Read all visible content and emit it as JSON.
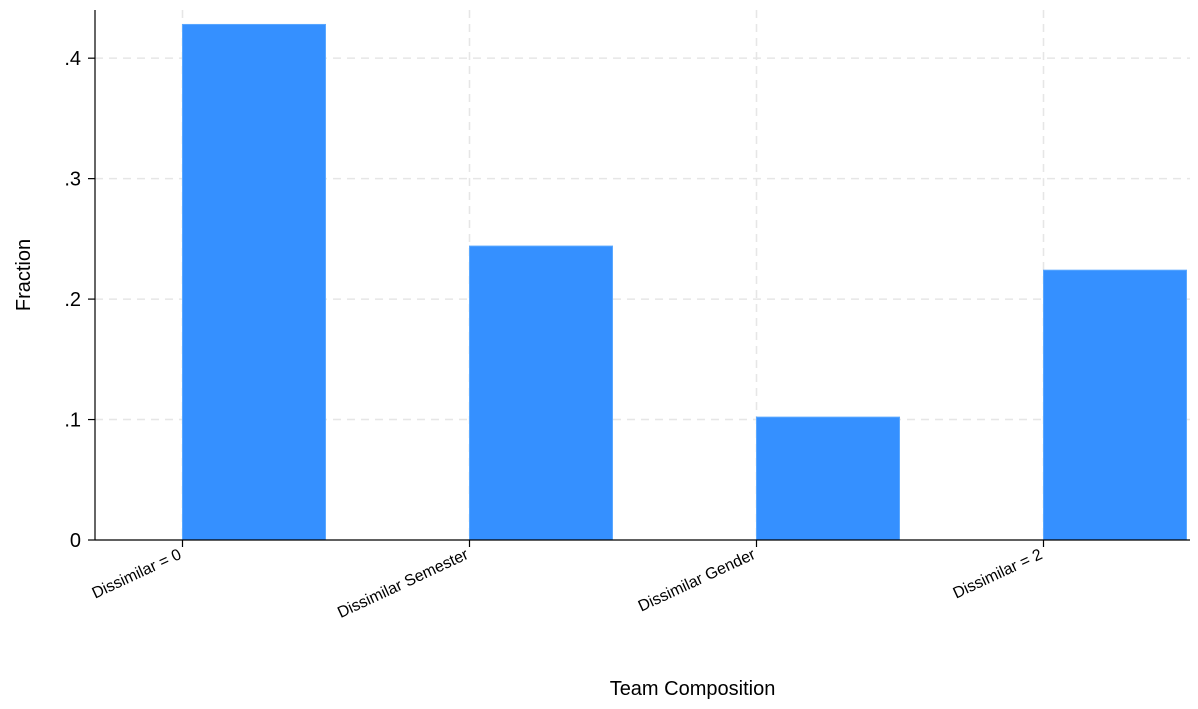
{
  "chart_data": {
    "type": "bar",
    "title": "",
    "xlabel": "Team Composition",
    "ylabel": "Fraction",
    "categories": [
      "Dissimilar = 0",
      "Dissimilar Semester",
      "Dissimilar Gender",
      "Dissimilar = 2"
    ],
    "values": [
      0.428,
      0.244,
      0.102,
      0.224
    ],
    "ylim": [
      0,
      0.44
    ],
    "yticks": [
      0,
      0.1,
      0.2,
      0.3,
      0.4
    ],
    "ytick_labels": [
      "0",
      ".1",
      ".2",
      ".3",
      ".4"
    ],
    "grid": true,
    "bar_color": "#3590ff",
    "grid_color": "#e6e6e6"
  }
}
